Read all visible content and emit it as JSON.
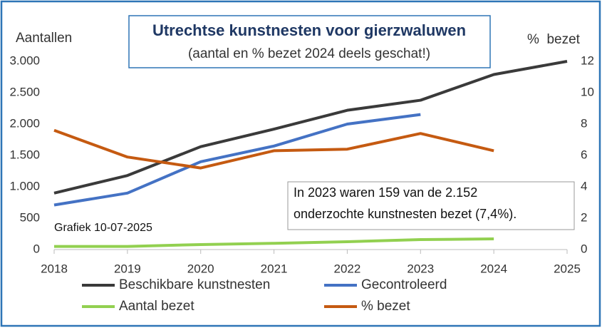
{
  "chart_data": {
    "type": "line",
    "title": "Utrechtse kunstnesten voor gierzwaluwen",
    "subtitle": "(aantal en % bezet 2024 deels geschat!)",
    "y_label": "Aantallen",
    "y2_label": "%  bezet",
    "note": "Grafiek 10-07-2025",
    "annotation": [
      "In 2023 waren 159 van de 2.152",
      "onderzochte kunstnesten bezet (7,4%)."
    ],
    "x": [
      2018,
      2019,
      2020,
      2021,
      2022,
      2023,
      2024,
      2025
    ],
    "xlim": [
      2018,
      2025
    ],
    "xticks": [
      2018,
      2019,
      2020,
      2021,
      2022,
      2023,
      2024,
      2025
    ],
    "ylim": [
      0,
      3000
    ],
    "yticks": [
      0,
      500,
      {
        "value": 1000,
        "label": "1.000"
      },
      {
        "value": 1500,
        "label": "1.500"
      },
      {
        "value": 2000,
        "label": "2.000"
      },
      {
        "value": 2500,
        "label": "2.500"
      },
      {
        "value": 3000,
        "label": "3.000"
      }
    ],
    "y2lim": [
      0,
      12
    ],
    "y2ticks": [
      0,
      2,
      4,
      6,
      8,
      10,
      12
    ],
    "grid": false,
    "legend": "bottom",
    "series": [
      {
        "name": "Beschikbare kunstnesten",
        "color": "#3a3a3a",
        "values": [
          900,
          1180,
          1640,
          1920,
          2220,
          2380,
          2790,
          3000
        ]
      },
      {
        "name": "Gecontroleerd",
        "color": "#4472c4",
        "values": [
          710,
          900,
          1400,
          1650,
          2000,
          2152,
          null,
          null
        ]
      },
      {
        "name": "Aantal bezet",
        "color": "#92d050",
        "values": [
          50,
          50,
          80,
          100,
          125,
          159,
          170,
          null
        ]
      },
      {
        "name": "% bezet",
        "color": "#c55a11",
        "axis": "y2",
        "values": [
          7.6,
          5.9,
          5.2,
          6.3,
          6.4,
          7.4,
          6.3,
          null
        ]
      }
    ]
  }
}
